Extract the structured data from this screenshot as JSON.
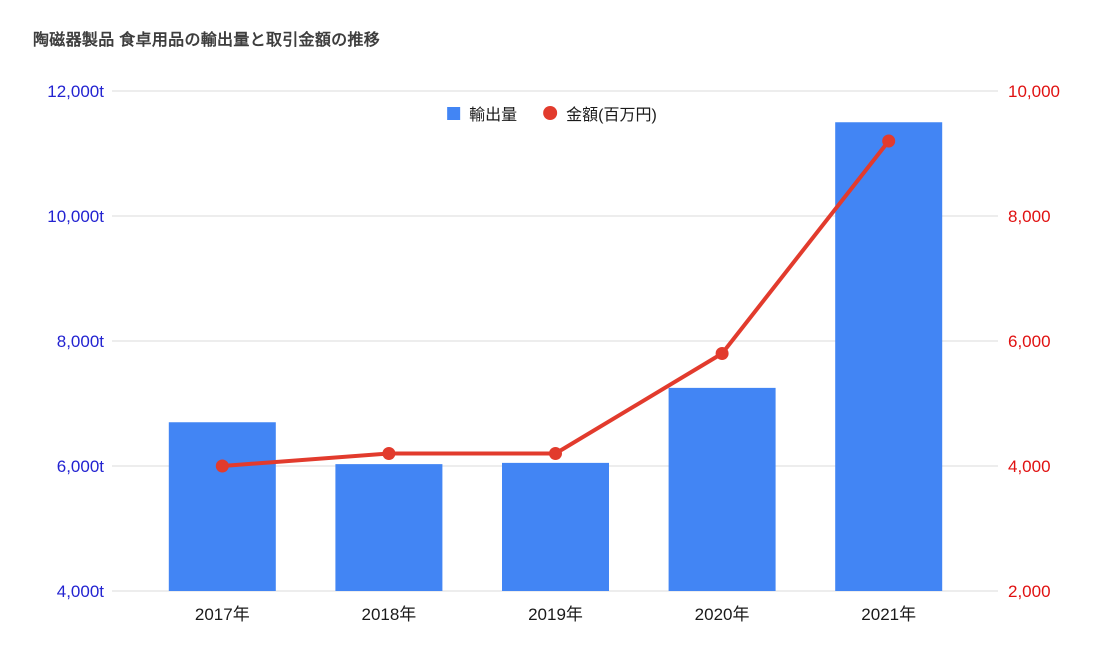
{
  "chart_data": {
    "type": "bar",
    "subtype": "combo-bar-line-dual-axis",
    "title": "陶磁器製品 食卓用品の輸出量と取引金額の推移",
    "title_color": "#3e3e3e",
    "categories": [
      "2017年",
      "2018年",
      "2019年",
      "2020年",
      "2021年"
    ],
    "series": [
      {
        "name": "輸出量",
        "type": "bar",
        "axis": "left",
        "color": "#4285F4",
        "values": [
          6700,
          6030,
          6050,
          7250,
          11500
        ]
      },
      {
        "name": "金額(百万円)",
        "type": "line",
        "axis": "right",
        "color": "#E23B2D",
        "values": [
          4000,
          4200,
          4200,
          5800,
          9200
        ]
      }
    ],
    "left_axis": {
      "color": "#2323D1",
      "range": [
        4000,
        12000
      ],
      "ticks": [
        {
          "label": "12,000t",
          "value": 12000
        },
        {
          "label": "10,000t",
          "value": 10000
        },
        {
          "label": "8,000t",
          "value": 8000
        },
        {
          "label": "6,000t",
          "value": 6000
        },
        {
          "label": "4,000t",
          "value": 4000
        }
      ]
    },
    "right_axis": {
      "color": "#E01111",
      "range": [
        2000,
        10000
      ],
      "ticks": [
        {
          "label": "10,000",
          "value": 10000
        },
        {
          "label": "8,000",
          "value": 8000
        },
        {
          "label": "6,000",
          "value": 6000
        },
        {
          "label": "4,000",
          "value": 4000
        },
        {
          "label": "2,000",
          "value": 2000
        }
      ]
    },
    "x_axis": {
      "label_color": "#1a1a1a"
    },
    "grid_color": "#dbdbdb",
    "legend_position": "top",
    "background": "#ffffff"
  }
}
